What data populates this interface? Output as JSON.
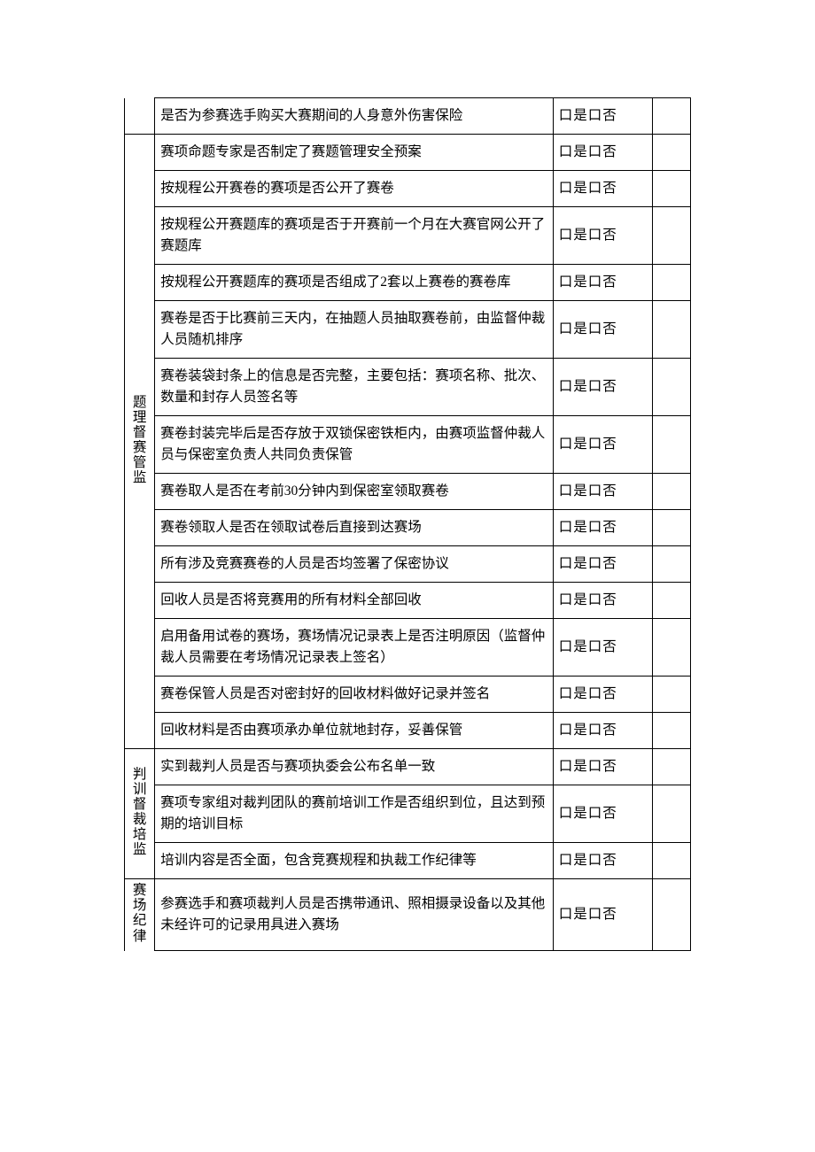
{
  "checkbox_yes_no": "口是口否",
  "groups": [
    {
      "rows": [
        {
          "text": "是否为参赛选手购买大赛期间的人身意外伤害保险"
        }
      ]
    },
    {
      "category": "题理督赛管监",
      "rows": [
        {
          "text": "赛项命题专家是否制定了赛题管理安全预案"
        },
        {
          "text": "按规程公开赛卷的赛项是否公开了赛卷"
        },
        {
          "text": "按规程公开赛题库的赛项是否于开赛前一个月在大赛官网公开了赛题库"
        },
        {
          "text": "按规程公开赛题库的赛项是否组成了2套以上赛卷的赛卷库"
        },
        {
          "text": "赛卷是否于比赛前三天内，在抽题人员抽取赛卷前，由监督仲裁人员随机排序"
        },
        {
          "text": "赛卷装袋封条上的信息是否完整，主要包括：赛项名称、批次、数量和封存人员签名等"
        },
        {
          "text": "赛卷封装完毕后是否存放于双锁保密铁柜内，由赛项监督仲裁人员与保密室负责人共同负责保管"
        },
        {
          "text": "赛卷取人是否在考前30分钟内到保密室领取赛卷"
        },
        {
          "text": "赛卷领取人是否在领取试卷后直接到达赛场"
        },
        {
          "text": "所有涉及竞赛赛卷的人员是否均签署了保密协议"
        },
        {
          "text": "回收人员是否将竞赛用的所有材料全部回收"
        },
        {
          "text": "启用备用试卷的赛场，赛场情况记录表上是否注明原因（监督仲裁人员需要在考场情况记录表上签名）"
        },
        {
          "text": "赛卷保管人员是否对密封好的回收材料做好记录并签名"
        },
        {
          "text": "回收材料是否由赛项承办单位就地封存，妥善保管"
        }
      ]
    },
    {
      "category": "判训督裁培监",
      "rows": [
        {
          "text": "实到裁判人员是否与赛项执委会公布名单一致"
        },
        {
          "text": "赛项专家组对裁判团队的赛前培训工作是否组织到位，且达到预期的培训目标"
        },
        {
          "text": "培训内容是否全面，包含竞赛规程和执裁工作纪律等"
        }
      ]
    },
    {
      "category": "赛场纪律",
      "category_open": true,
      "rows": [
        {
          "text": "参赛选手和赛项裁判人员是否携带通讯、照相摄录设备以及其他未经许可的记录用具进入赛场"
        }
      ]
    }
  ]
}
